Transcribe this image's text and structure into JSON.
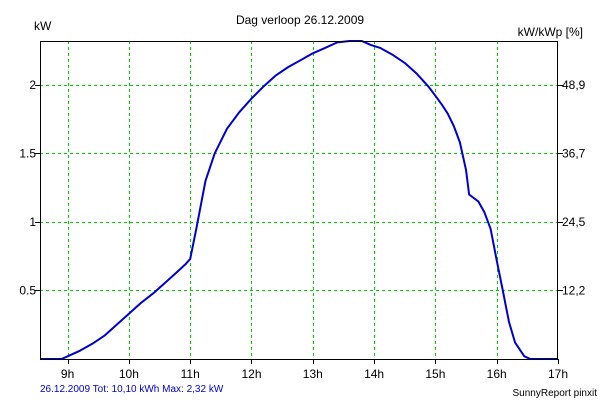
{
  "chart_data": {
    "type": "line",
    "title": "Dag  verloop 26.12.2009",
    "ylabel": "kW",
    "ylabel_right": "kW/kWp [%]",
    "footer_left": "26.12.2009 Tot: 10,10 kWh Max: 2,32 kW",
    "footer_right": "SunnyReport pinxit",
    "xlim": [
      8.55,
      17.0
    ],
    "ylim": [
      0,
      2.32
    ],
    "x_ticks": [
      9,
      10,
      11,
      12,
      13,
      14,
      15,
      16,
      17
    ],
    "x_tick_labels": [
      "9h",
      "10h",
      "11h",
      "12h",
      "13h",
      "14h",
      "15h",
      "16h",
      "17h"
    ],
    "y_ticks": [
      0.5,
      1,
      1.5,
      2
    ],
    "y_tick_labels": [
      "0.5",
      "1",
      "1.5",
      "2"
    ],
    "y_right_ticks": [
      0.5,
      1,
      1.5,
      2
    ],
    "y_right_tick_labels": [
      "12,2",
      "24,5",
      "36,7",
      "48,9"
    ],
    "grid": true,
    "colors": {
      "line": "#0000cc",
      "grid": "#00cc00",
      "footer": "#0000cc",
      "axis": "#000000"
    },
    "series": [
      {
        "x": [
          8.55,
          8.9,
          9.0,
          9.2,
          9.4,
          9.6,
          9.8,
          10.0,
          10.2,
          10.4,
          10.6,
          10.8,
          10.92,
          11.0,
          11.1,
          11.25,
          11.4,
          11.6,
          11.8,
          12.0,
          12.2,
          12.4,
          12.6,
          12.8,
          13.0,
          13.2,
          13.4,
          13.6,
          13.8,
          13.95,
          14.1,
          14.3,
          14.5,
          14.7,
          14.9,
          15.0,
          15.1,
          15.2,
          15.3,
          15.4,
          15.5,
          15.55,
          15.7,
          15.8,
          15.9,
          16.0,
          16.1,
          16.2,
          16.3,
          16.45,
          16.55,
          16.7,
          17.0
        ],
        "y": [
          0.0,
          0.0,
          0.02,
          0.06,
          0.11,
          0.17,
          0.25,
          0.33,
          0.41,
          0.48,
          0.56,
          0.64,
          0.69,
          0.73,
          0.95,
          1.3,
          1.5,
          1.68,
          1.8,
          1.9,
          1.99,
          2.07,
          2.13,
          2.18,
          2.23,
          2.27,
          2.31,
          2.32,
          2.32,
          2.29,
          2.27,
          2.22,
          2.16,
          2.08,
          1.98,
          1.92,
          1.86,
          1.79,
          1.7,
          1.58,
          1.38,
          1.2,
          1.15,
          1.07,
          0.95,
          0.72,
          0.5,
          0.27,
          0.12,
          0.02,
          0.0,
          0.0,
          0.0
        ]
      }
    ]
  }
}
